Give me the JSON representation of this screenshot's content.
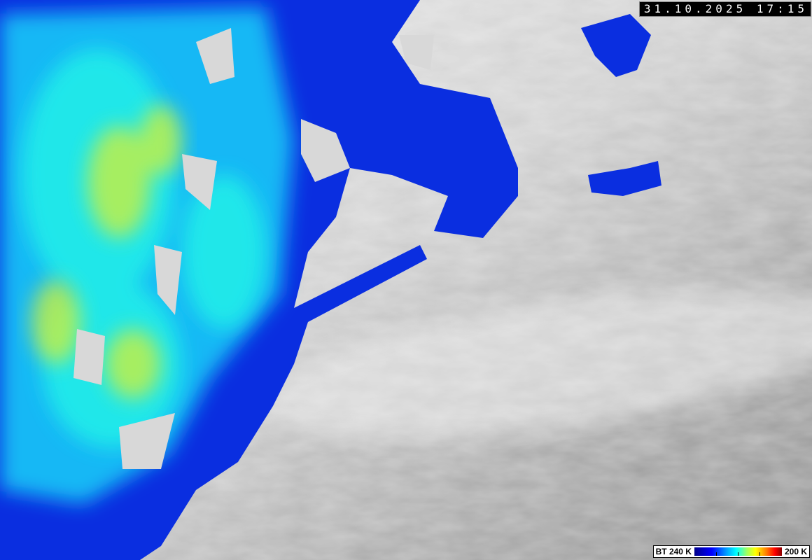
{
  "timestamp": "31.10.2025 17:15",
  "legend": {
    "label_left": "BT 240 K",
    "label_right": "200 K",
    "colormap": [
      "#00008a",
      "#0000ff",
      "#00aaff",
      "#00ffff",
      "#a0ff60",
      "#ffff00",
      "#ff8000",
      "#ff0000",
      "#8a0000"
    ]
  },
  "colors": {
    "cloud_gray": "#b0b0b0",
    "cold_blue": "#0a2ee0",
    "cyan": "#18e8f0",
    "yellow_green": "#c8f040"
  }
}
